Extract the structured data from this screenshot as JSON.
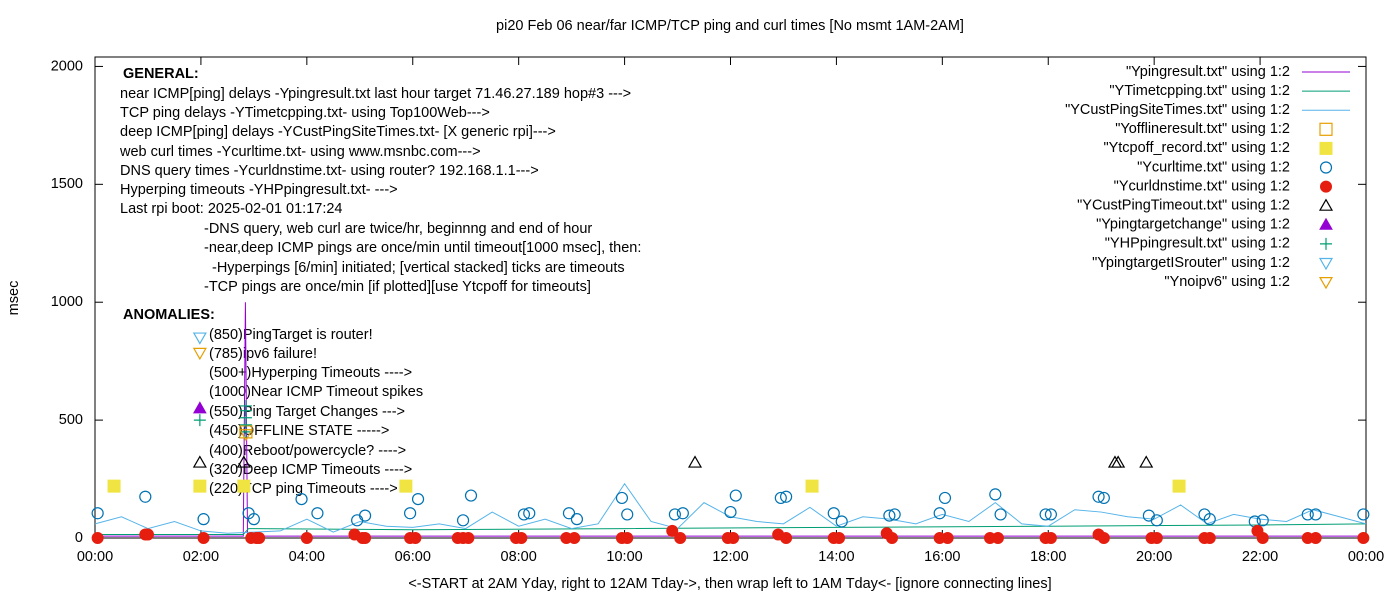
{
  "chart_data": {
    "type": "mixed",
    "title": "pi20 Feb 06  near/far ICMP/TCP ping and curl times [No msmt 1AM-2AM]",
    "x_label": "<-START at 2AM Yday, right to 12AM Tday->, then wrap left to 1AM Tday<- [ignore connecting lines]",
    "y_label": "msec",
    "xlim": [
      0,
      24
    ],
    "ylim": [
      0,
      2040
    ],
    "xticks": [
      {
        "value": 0,
        "label": "00:00"
      },
      {
        "value": 2,
        "label": "02:00"
      },
      {
        "value": 4,
        "label": "04:00"
      },
      {
        "value": 6,
        "label": "06:00"
      },
      {
        "value": 8,
        "label": "08:00"
      },
      {
        "value": 10,
        "label": "10:00"
      },
      {
        "value": 12,
        "label": "12:00"
      },
      {
        "value": 14,
        "label": "14:00"
      },
      {
        "value": 16,
        "label": "16:00"
      },
      {
        "value": 18,
        "label": "18:00"
      },
      {
        "value": 20,
        "label": "20:00"
      },
      {
        "value": 22,
        "label": "22:00"
      },
      {
        "value": 24,
        "label": "00:00"
      }
    ],
    "yticks": [
      0,
      500,
      1000,
      1500,
      2000
    ],
    "grid": false,
    "legend": "top-right",
    "annotations": [
      "GENERAL:",
      "near ICMP[ping] delays -Ypingresult.txt last hour target 71.46.27.189 hop#3 --->",
      "TCP ping delays -YTimetcpping.txt- using Top100Web--->",
      "deep ICMP[ping] delays -YCustPingSiteTimes.txt- [X generic rpi]--->",
      "web curl times -Ycurltime.txt- using www.msnbc.com--->",
      "DNS query times -Ycurldnstime.txt- using router? 192.168.1.1--->",
      "Hyperping timeouts -YHPpingresult.txt- --->",
      "Last rpi boot: 2025-02-01 01:17:24",
      "-DNS query, web curl are twice/hr, beginnng and end of hour",
      "-near,deep ICMP pings are once/min until timeout[1000 msec], then:",
      "-Hyperpings [6/min] initiated; [vertical stacked] ticks are timeouts",
      "-TCP pings are once/min [if plotted][use Ytcpoff for timeouts]",
      "ANOMALIES:",
      "(850)PingTarget is router!",
      "(785)ipv6 failure!",
      "(500+)Hyperping Timeouts ---->",
      "(1000)Near ICMP Timeout spikes",
      "(550)Ping Target Changes --->",
      "(450)OFFLINE STATE ----->",
      "(400)Reboot/powercycle? ---->",
      "(320)Deep ICMP Timeouts ---->",
      "(220)TCP ping Timeouts ---->"
    ],
    "series": [
      {
        "name": "\"Ypingresult.txt\" using 1:2",
        "style": "line",
        "color": "#9400d3",
        "x": [
          0,
          1,
          2,
          2.8,
          2.84,
          2.88,
          3,
          6,
          9,
          12,
          15,
          18,
          21,
          24
        ],
        "values": [
          8,
          8,
          8,
          8,
          1000,
          8,
          8,
          8,
          8,
          8,
          8,
          8,
          8,
          8
        ]
      },
      {
        "name": "\"YTimetcpping.txt\" using 1:2",
        "style": "line",
        "color": "#009e73",
        "x": [
          0,
          1,
          2,
          2.8,
          2.9,
          6,
          10,
          14,
          18,
          22,
          24
        ],
        "values": [
          15,
          15,
          15,
          15,
          40,
          35,
          40,
          45,
          50,
          55,
          60
        ]
      },
      {
        "name": "\"YCustPingSiteTimes.txt\" using 1:2",
        "style": "line",
        "color": "#56b4e9",
        "x": [
          0,
          0.5,
          1,
          1.5,
          2,
          2.5,
          3,
          3.5,
          4,
          4.5,
          5,
          5.5,
          6,
          6.5,
          7,
          7.5,
          8,
          8.5,
          9,
          9.5,
          10,
          10.5,
          11,
          11.5,
          12,
          12.5,
          13,
          13.5,
          14,
          14.5,
          15,
          15.5,
          16,
          16.5,
          17,
          17.5,
          18,
          18.5,
          19,
          19.5,
          20,
          20.5,
          21,
          21.5,
          22,
          22.5,
          23,
          23.5,
          24
        ],
        "values": [
          60,
          90,
          40,
          70,
          30,
          20,
          25,
          30,
          80,
          25,
          70,
          50,
          45,
          60,
          40,
          110,
          50,
          80,
          40,
          60,
          230,
          70,
          40,
          150,
          90,
          70,
          60,
          130,
          50,
          90,
          80,
          60,
          100,
          70,
          150,
          60,
          50,
          120,
          110,
          90,
          80,
          140,
          60,
          100,
          80,
          70,
          120,
          90,
          60
        ]
      },
      {
        "name": "\"Yofflineresult.txt\" using 1:2",
        "style": "points",
        "marker": "square-open",
        "color": "#e69f00",
        "x": [
          2.85
        ],
        "values": [
          450
        ]
      },
      {
        "name": "\"Ytcpoff_record.txt\" using 1:2",
        "style": "points",
        "marker": "square-filled",
        "color": "#f0e442",
        "x": [
          0.36,
          1.98,
          2.81,
          5.87,
          13.54,
          20.47
        ],
        "values": [
          220,
          220,
          220,
          220,
          220,
          220
        ]
      },
      {
        "name": "\"Ycurltime.txt\" using 1:2",
        "style": "points",
        "marker": "circle-open",
        "color": "#0072b2",
        "x": [
          0.05,
          0.95,
          2.05,
          2.9,
          3.0,
          3.9,
          4.2,
          4.95,
          5.1,
          5.95,
          6.1,
          6.95,
          7.1,
          8.1,
          8.2,
          8.95,
          9.1,
          9.95,
          10.05,
          10.95,
          11.1,
          12.0,
          12.1,
          12.95,
          13.05,
          13.95,
          14.1,
          15.0,
          15.1,
          15.95,
          16.05,
          17.0,
          17.1,
          17.95,
          18.05,
          18.95,
          19.05,
          19.9,
          20.05,
          20.95,
          21.05,
          21.9,
          22.05,
          22.9,
          23.05,
          23.95
        ],
        "values": [
          105,
          175,
          80,
          105,
          80,
          165,
          105,
          75,
          95,
          105,
          165,
          75,
          180,
          100,
          105,
          105,
          80,
          170,
          100,
          100,
          105,
          110,
          180,
          170,
          175,
          105,
          70,
          95,
          100,
          105,
          170,
          185,
          100,
          100,
          100,
          175,
          170,
          95,
          75,
          100,
          80,
          70,
          75,
          100,
          100,
          100
        ]
      },
      {
        "name": "\"Ycurldnstime.txt\" using 1:2",
        "style": "points",
        "marker": "circle-filled",
        "color": "#e51e10",
        "x": [
          0.05,
          0.95,
          1.0,
          2.05,
          2.95,
          3.05,
          3.1,
          4.0,
          4.9,
          5.05,
          5.1,
          5.95,
          6.05,
          6.85,
          6.95,
          7.05,
          7.95,
          8.05,
          8.9,
          9.05,
          9.95,
          10.05,
          10.9,
          11.05,
          11.95,
          12.05,
          12.9,
          13.05,
          13.95,
          14.05,
          14.95,
          15.05,
          15.95,
          16.1,
          16.9,
          17.05,
          17.95,
          18.05,
          18.95,
          19.05,
          19.95,
          20.05,
          20.95,
          21.05,
          21.95,
          22.05,
          22.9,
          23.05,
          23.95
        ],
        "values": [
          0,
          15,
          15,
          0,
          0,
          0,
          0,
          0,
          15,
          0,
          0,
          0,
          0,
          0,
          0,
          0,
          0,
          0,
          0,
          0,
          0,
          0,
          30,
          0,
          0,
          0,
          15,
          0,
          0,
          0,
          20,
          0,
          0,
          0,
          0,
          0,
          0,
          0,
          15,
          0,
          0,
          0,
          0,
          0,
          30,
          0,
          0,
          0,
          0
        ]
      },
      {
        "name": "\"YCustPingTimeout.txt\" using 1:2",
        "style": "points",
        "marker": "triangle-open",
        "color": "#000000",
        "x": [
          1.98,
          2.81,
          11.33,
          19.26,
          19.32,
          19.85
        ],
        "values": [
          320,
          320,
          320,
          320,
          320,
          320
        ]
      },
      {
        "name": "\"Ypingtargetchange\" using 1:2",
        "style": "points",
        "marker": "triangle-filled",
        "color": "#9400d3",
        "x": [
          1.98
        ],
        "values": [
          550
        ]
      },
      {
        "name": "\"YHPpingresult.txt\" using 1:2",
        "style": "points",
        "marker": "plus",
        "color": "#009e73",
        "x": [
          1.98,
          2.85,
          2.85,
          2.85,
          2.85,
          2.85
        ],
        "values": [
          500,
          450,
          480,
          510,
          540,
          560
        ]
      },
      {
        "name": "\"YpingtargetISrouter\" using 1:2",
        "style": "points",
        "marker": "triangle-down-open",
        "color": "#56b4e9",
        "x": [
          1.98
        ],
        "values": [
          850
        ]
      },
      {
        "name": "\"Ynoipv6\" using 1:2",
        "style": "points",
        "marker": "triangle-down-open",
        "color": "#e69f00",
        "x": [
          1.98,
          2.85
        ],
        "values": [
          785,
          440
        ]
      }
    ]
  }
}
